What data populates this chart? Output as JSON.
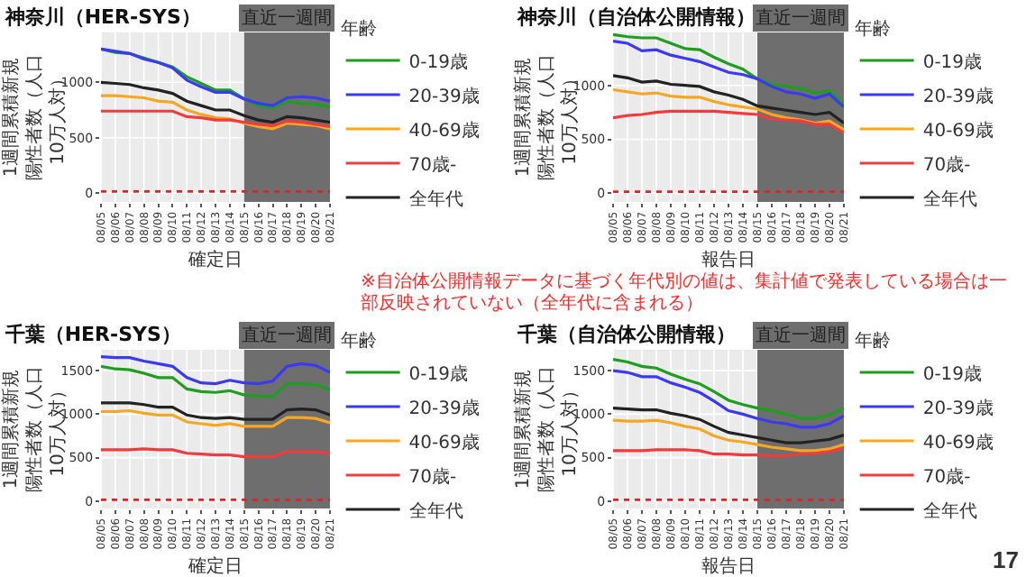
{
  "chart_data": [
    {
      "type": "line",
      "title": "神奈川（HER-SYS）",
      "xlabel": "確定日",
      "ylabel": "1週間累積新規陽性者数（人口10万人対）",
      "legend_title": "年齢",
      "legend": "right",
      "grid": true,
      "categories": [
        "08/05",
        "08/06",
        "08/07",
        "08/08",
        "08/09",
        "08/10",
        "08/11",
        "08/12",
        "08/13",
        "08/14",
        "08/15",
        "08/16",
        "08/17",
        "08/18",
        "08/19",
        "08/20",
        "08/21"
      ],
      "ylim": [
        -80,
        1450
      ],
      "yticks": [
        0,
        500,
        1000
      ],
      "series": [
        {
          "name": "0-19歳",
          "color": "#1e9e1e",
          "values": [
            1300,
            1270,
            1260,
            1220,
            1180,
            1140,
            1050,
            990,
            930,
            930,
            850,
            790,
            770,
            830,
            810,
            800,
            780
          ]
        },
        {
          "name": "20-39歳",
          "color": "#3a3af5",
          "values": [
            1300,
            1280,
            1260,
            1210,
            1180,
            1130,
            1020,
            960,
            910,
            910,
            850,
            810,
            790,
            860,
            870,
            860,
            830
          ]
        },
        {
          "name": "40-69歳",
          "color": "#f5a623",
          "values": [
            880,
            880,
            870,
            860,
            830,
            820,
            750,
            710,
            680,
            670,
            630,
            600,
            580,
            630,
            620,
            610,
            580
          ]
        },
        {
          "name": "70歳-",
          "color": "#f03c3c",
          "values": [
            740,
            740,
            740,
            740,
            740,
            740,
            690,
            680,
            660,
            660,
            640,
            620,
            610,
            650,
            640,
            620,
            600
          ]
        },
        {
          "name": "全年代",
          "color": "#222222",
          "values": [
            1000,
            990,
            980,
            950,
            930,
            900,
            830,
            790,
            750,
            750,
            700,
            660,
            640,
            690,
            680,
            660,
            640
          ]
        }
      ],
      "bands": [
        {
          "axis": "x",
          "from": "08/15",
          "to": "08/21",
          "label": "直近一週間",
          "color": "#6e6e6e"
        }
      ],
      "ref_lines": [
        {
          "axis": "y",
          "value": 15,
          "color": "#d62728",
          "line_style": "dotted"
        }
      ]
    },
    {
      "type": "line",
      "title": "神奈川（自治体公開情報）",
      "xlabel": "報告日",
      "ylabel": "1週間累積新規陽性者数（人口10万人対）",
      "legend_title": "年齢",
      "legend": "right",
      "grid": true,
      "categories": [
        "08/05",
        "08/06",
        "08/07",
        "08/08",
        "08/09",
        "08/10",
        "08/11",
        "08/12",
        "08/13",
        "08/14",
        "08/15",
        "08/16",
        "08/17",
        "08/18",
        "08/19",
        "08/20",
        "08/21"
      ],
      "ylim": [
        -80,
        1490
      ],
      "yticks": [
        0,
        500,
        1000
      ],
      "series": [
        {
          "name": "0-19歳",
          "color": "#1e9e1e",
          "values": [
            1470,
            1450,
            1440,
            1440,
            1390,
            1340,
            1330,
            1260,
            1200,
            1150,
            1060,
            1010,
            990,
            970,
            930,
            950,
            820
          ]
        },
        {
          "name": "20-39歳",
          "color": "#3a3af5",
          "values": [
            1410,
            1390,
            1320,
            1330,
            1280,
            1250,
            1220,
            1170,
            1120,
            1100,
            1060,
            990,
            940,
            920,
            880,
            920,
            800
          ]
        },
        {
          "name": "40-69歳",
          "color": "#f5a623",
          "values": [
            960,
            940,
            920,
            930,
            900,
            890,
            890,
            850,
            820,
            800,
            780,
            730,
            700,
            680,
            650,
            670,
            590
          ]
        },
        {
          "name": "70歳-",
          "color": "#f03c3c",
          "values": [
            700,
            720,
            730,
            750,
            760,
            760,
            760,
            760,
            750,
            740,
            730,
            690,
            680,
            670,
            640,
            640,
            560
          ]
        },
        {
          "name": "全年代",
          "color": "#222222",
          "values": [
            1090,
            1070,
            1030,
            1040,
            1010,
            1000,
            990,
            940,
            910,
            870,
            810,
            790,
            770,
            750,
            730,
            750,
            650
          ]
        }
      ],
      "bands": [
        {
          "axis": "x",
          "from": "08/15",
          "to": "08/21",
          "label": "直近一週間",
          "color": "#6e6e6e"
        }
      ],
      "ref_lines": [
        {
          "axis": "y",
          "value": 15,
          "color": "#d62728",
          "line_style": "dotted"
        }
      ]
    },
    {
      "type": "line",
      "title": "千葉（HER-SYS）",
      "xlabel": "確定日",
      "ylabel": "1週間累積新規陽性者数（人口10万人対）",
      "legend_title": "年齢",
      "legend": "right",
      "grid": true,
      "categories": [
        "08/05",
        "08/06",
        "08/07",
        "08/08",
        "08/09",
        "08/10",
        "08/11",
        "08/12",
        "08/13",
        "08/14",
        "08/15",
        "08/16",
        "08/17",
        "08/18",
        "08/19",
        "08/20",
        "08/21"
      ],
      "ylim": [
        -85,
        1740
      ],
      "yticks": [
        0,
        500,
        1000,
        1500
      ],
      "series": [
        {
          "name": "0-19歳",
          "color": "#1e9e1e",
          "values": [
            1550,
            1520,
            1510,
            1470,
            1420,
            1420,
            1290,
            1260,
            1250,
            1270,
            1220,
            1210,
            1200,
            1350,
            1350,
            1340,
            1280
          ]
        },
        {
          "name": "20-39歳",
          "color": "#3a3af5",
          "values": [
            1660,
            1650,
            1650,
            1610,
            1580,
            1550,
            1420,
            1360,
            1350,
            1390,
            1360,
            1350,
            1380,
            1550,
            1580,
            1560,
            1480
          ]
        },
        {
          "name": "40-69歳",
          "color": "#f5a623",
          "values": [
            1030,
            1030,
            1040,
            1010,
            990,
            990,
            910,
            890,
            870,
            890,
            860,
            860,
            860,
            960,
            960,
            950,
            900
          ]
        },
        {
          "name": "70歳-",
          "color": "#f03c3c",
          "values": [
            590,
            590,
            590,
            600,
            590,
            590,
            550,
            540,
            530,
            530,
            510,
            510,
            510,
            570,
            570,
            570,
            550
          ]
        },
        {
          "name": "全年代",
          "color": "#222222",
          "values": [
            1130,
            1130,
            1130,
            1110,
            1080,
            1080,
            990,
            960,
            950,
            960,
            940,
            940,
            940,
            1050,
            1060,
            1050,
            990
          ]
        }
      ],
      "bands": [
        {
          "axis": "x",
          "from": "08/15",
          "to": "08/21",
          "label": "直近一週間",
          "color": "#6e6e6e"
        }
      ],
      "ref_lines": [
        {
          "axis": "y",
          "value": 15,
          "color": "#d62728",
          "line_style": "dotted"
        }
      ]
    },
    {
      "type": "line",
      "title": "千葉（自治体公開情報）",
      "xlabel": "報告日",
      "ylabel": "1週間累積新規陽性者数（人口10万人対）",
      "legend_title": "年齢",
      "legend": "right",
      "grid": true,
      "categories": [
        "08/05",
        "08/06",
        "08/07",
        "08/08",
        "08/09",
        "08/10",
        "08/11",
        "08/12",
        "08/13",
        "08/14",
        "08/15",
        "08/16",
        "08/17",
        "08/18",
        "08/19",
        "08/20",
        "08/21"
      ],
      "ylim": [
        -85,
        1740
      ],
      "yticks": [
        0,
        500,
        1000,
        1500
      ],
      "series": [
        {
          "name": "0-19歳",
          "color": "#1e9e1e",
          "values": [
            1630,
            1600,
            1550,
            1530,
            1460,
            1400,
            1350,
            1260,
            1160,
            1110,
            1070,
            1040,
            1000,
            950,
            950,
            990,
            1070
          ]
        },
        {
          "name": "20-39歳",
          "color": "#3a3af5",
          "values": [
            1500,
            1480,
            1430,
            1430,
            1360,
            1310,
            1250,
            1150,
            1040,
            1000,
            950,
            910,
            890,
            850,
            850,
            890,
            980
          ]
        },
        {
          "name": "40-69歳",
          "color": "#f5a623",
          "values": [
            930,
            920,
            920,
            930,
            900,
            860,
            830,
            750,
            700,
            680,
            650,
            620,
            600,
            580,
            580,
            600,
            650
          ]
        },
        {
          "name": "70歳-",
          "color": "#f03c3c",
          "values": [
            580,
            580,
            580,
            590,
            590,
            590,
            580,
            540,
            540,
            530,
            530,
            520,
            520,
            540,
            550,
            570,
            610
          ]
        },
        {
          "name": "全年代",
          "color": "#222222",
          "values": [
            1070,
            1060,
            1050,
            1050,
            1010,
            980,
            940,
            860,
            790,
            760,
            730,
            700,
            670,
            670,
            690,
            710,
            760
          ]
        }
      ],
      "bands": [
        {
          "axis": "x",
          "from": "08/15",
          "to": "08/21",
          "label": "直近一週間",
          "color": "#6e6e6e"
        }
      ],
      "ref_lines": [
        {
          "axis": "y",
          "value": 15,
          "color": "#d62728",
          "line_style": "dotted"
        }
      ],
      "annotations": [
        "※自治体公開情報データに基づく年代別の値は、集計値で発表している場合は一部反映されていない（全年代に含まれる）",
        "17"
      ]
    }
  ]
}
